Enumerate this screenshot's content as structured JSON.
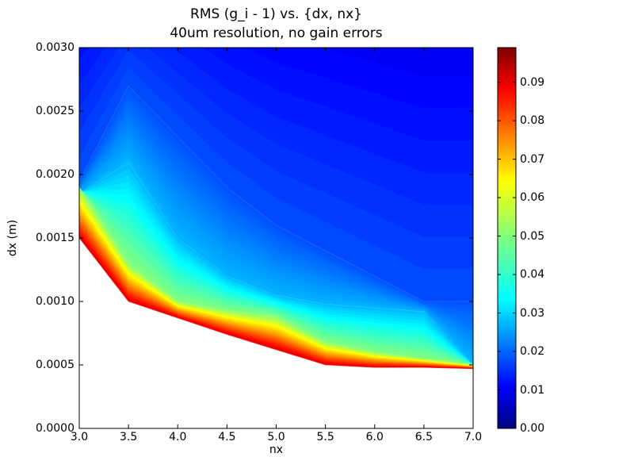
{
  "chart_data": {
    "type": "contour",
    "title": "RMS (g_i - 1) vs. {dx, nx}",
    "subtitle": "40um resolution, no gain errors",
    "xlabel": "nx",
    "ylabel": "dx (m)",
    "xlim": [
      3.0,
      7.0
    ],
    "ylim": [
      0.0,
      0.003
    ],
    "x_ticks": [
      "3.0",
      "3.5",
      "4.0",
      "4.5",
      "5.0",
      "5.5",
      "6.0",
      "6.5",
      "7.0"
    ],
    "y_ticks": [
      "0.0000",
      "0.0005",
      "0.0010",
      "0.0015",
      "0.0020",
      "0.0025",
      "0.0030"
    ],
    "colorbar": {
      "colormap": "jet",
      "range": [
        0.0,
        0.099
      ],
      "ticks": [
        "0.00",
        "0.01",
        "0.02",
        "0.03",
        "0.04",
        "0.05",
        "0.06",
        "0.07",
        "0.08",
        "0.09"
      ]
    },
    "nx_values": [
      3.0,
      3.5,
      4.0,
      4.5,
      5.0,
      5.5,
      6.0,
      6.5,
      7.0
    ],
    "lower_boundary_dx": [
      0.0015,
      0.001,
      0.00087,
      0.00074,
      0.00062,
      0.0005,
      0.00048,
      0.00048,
      0.00047
    ],
    "rms_contours": [
      {
        "level": 0.02,
        "dx": [
          0.00195,
          0.0027,
          0.0023,
          0.0019,
          0.0016,
          0.0014,
          0.0012,
          0.001,
          0.001
        ]
      },
      {
        "level": 0.03,
        "dx": [
          0.00185,
          0.0021,
          0.0015,
          0.0012,
          0.00105,
          0.00098,
          0.00095,
          0.00092,
          0.0005
        ]
      },
      {
        "level": 0.05,
        "dx": [
          0.0019,
          0.0013,
          0.001,
          0.00093,
          0.00088,
          0.00068,
          0.0006,
          0.00055,
          0.0005
        ]
      },
      {
        "level": 0.09,
        "dx": [
          0.0015,
          0.001,
          0.00087,
          0.00074,
          0.00062,
          0.0005,
          0.00048,
          0.00048,
          0.00047
        ]
      }
    ]
  }
}
